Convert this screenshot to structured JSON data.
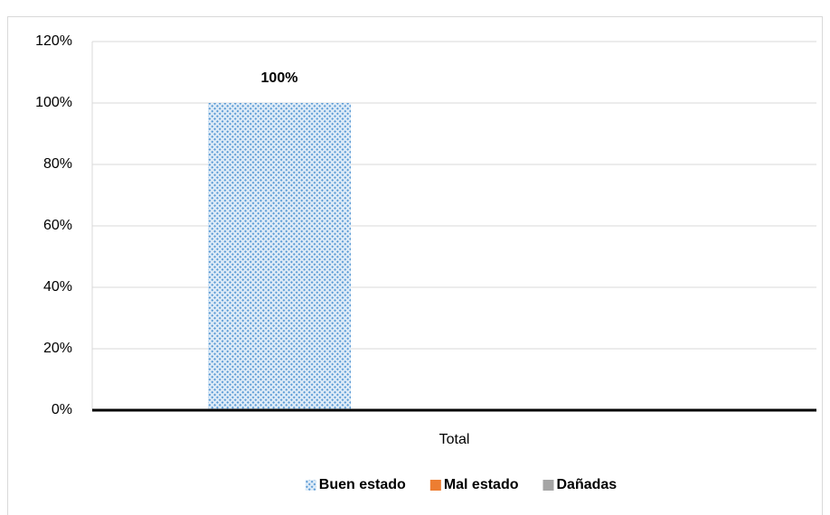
{
  "chart_data": {
    "type": "bar",
    "categories": [
      "Total"
    ],
    "series": [
      {
        "name": "Buen estado",
        "color": "#5b9bd5",
        "pattern": "dotted-diagonal",
        "values": [
          100
        ],
        "value_labels": [
          "100%"
        ]
      },
      {
        "name": "Mal estado",
        "color": "#ed7d31",
        "values": [
          0
        ]
      },
      {
        "name": "Dañadas",
        "color": "#a5a5a5",
        "values": [
          0
        ]
      }
    ],
    "ylim": [
      0,
      120
    ],
    "yticks": [
      {
        "value": 0,
        "label": "0%"
      },
      {
        "value": 20,
        "label": "20%"
      },
      {
        "value": 40,
        "label": "40%"
      },
      {
        "value": 60,
        "label": "60%"
      },
      {
        "value": 80,
        "label": "80%"
      },
      {
        "value": 100,
        "label": "100%"
      },
      {
        "value": 120,
        "label": "120%"
      }
    ],
    "grid": true,
    "legend": "bottom"
  }
}
